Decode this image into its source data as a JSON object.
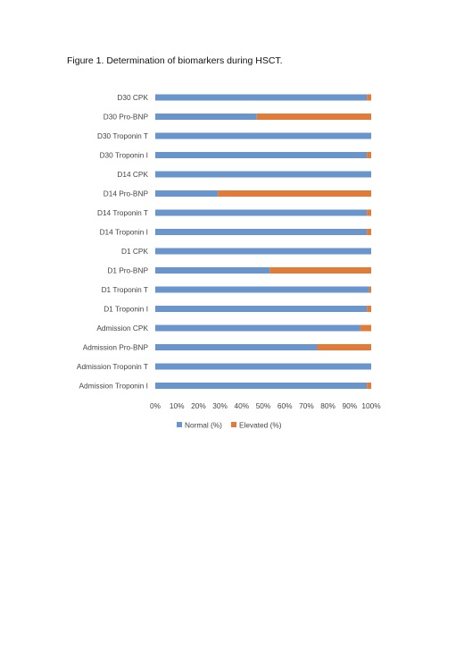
{
  "caption": "Figure 1. Determination of biomarkers during HSCT.",
  "colors": {
    "normal": "#6a95cc",
    "elevated": "#e07b3a"
  },
  "chart_data": {
    "type": "bar",
    "orientation": "horizontal",
    "stacked": true,
    "title": "",
    "xlabel": "",
    "ylabel": "",
    "xlim": [
      0,
      100
    ],
    "grid": false,
    "legend_position": "bottom",
    "x_ticks": [
      "0%",
      "10%",
      "20%",
      "30%",
      "40%",
      "50%",
      "60%",
      "70%",
      "80%",
      "90%",
      "100%"
    ],
    "categories": [
      "D30 CPK",
      "D30 Pro-BNP",
      "D30 Troponin T",
      "D30 Troponin I",
      "D14 CPK",
      "D14 Pro-BNP",
      "D14 Troponin T",
      "D14 Troponin I",
      "D1 CPK",
      "D1  Pro-BNP",
      "D1 Troponin T",
      "D1 Troponin I",
      "Admission CPK",
      "Admission Pro-BNP",
      "Admission Troponin T",
      "Admission Troponin I"
    ],
    "series": [
      {
        "name": "Normal (%)",
        "values": [
          98,
          47,
          100,
          98,
          100,
          29,
          98,
          98,
          100,
          53,
          99,
          98,
          95,
          75,
          100,
          98
        ]
      },
      {
        "name": "Elevated (%)",
        "values": [
          2,
          53,
          0,
          2,
          0,
          71,
          2,
          2,
          0,
          47,
          1,
          2,
          5,
          25,
          0,
          2
        ]
      }
    ]
  }
}
